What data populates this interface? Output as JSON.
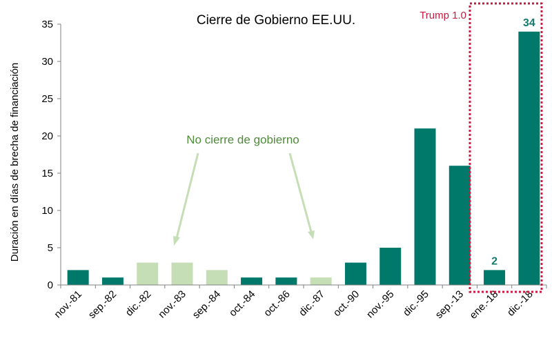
{
  "chart_data": {
    "type": "bar",
    "title": "Cierre de Gobierno EE.UU.",
    "ylabel": "Duración en días de brecha de financiación",
    "xlabel": "",
    "ylim": [
      0,
      35
    ],
    "yticks": [
      0,
      5,
      10,
      15,
      20,
      25,
      30,
      35
    ],
    "grid": false,
    "categories": [
      "nov.-81",
      "sep.-82",
      "dic.-82",
      "nov.-83",
      "sep.-84",
      "oct.-84",
      "oct.-86",
      "dic.-87",
      "oct.-90",
      "nov.-95",
      "dic.-95",
      "sep.-13",
      "ene.-18",
      "dic.-18"
    ],
    "values": [
      2,
      1,
      3,
      3,
      2,
      1,
      1,
      1,
      3,
      5,
      21,
      16,
      2,
      34
    ],
    "shutdown": [
      true,
      true,
      false,
      false,
      false,
      true,
      true,
      false,
      true,
      true,
      true,
      true,
      true,
      true
    ],
    "data_labels": [
      {
        "index": 12,
        "text": "2"
      },
      {
        "index": 13,
        "text": "34"
      }
    ],
    "annotations": {
      "no_shutdown": "No cierre de gobierno",
      "trump": "Trump 1.0"
    },
    "colors": {
      "shutdown": "#00796b",
      "no_shutdown": "#c5deb5",
      "annotation": "#4f8a3a",
      "arrow": "#c5deb5",
      "trump": "#c8193f",
      "data_label": "#127a6d"
    }
  }
}
